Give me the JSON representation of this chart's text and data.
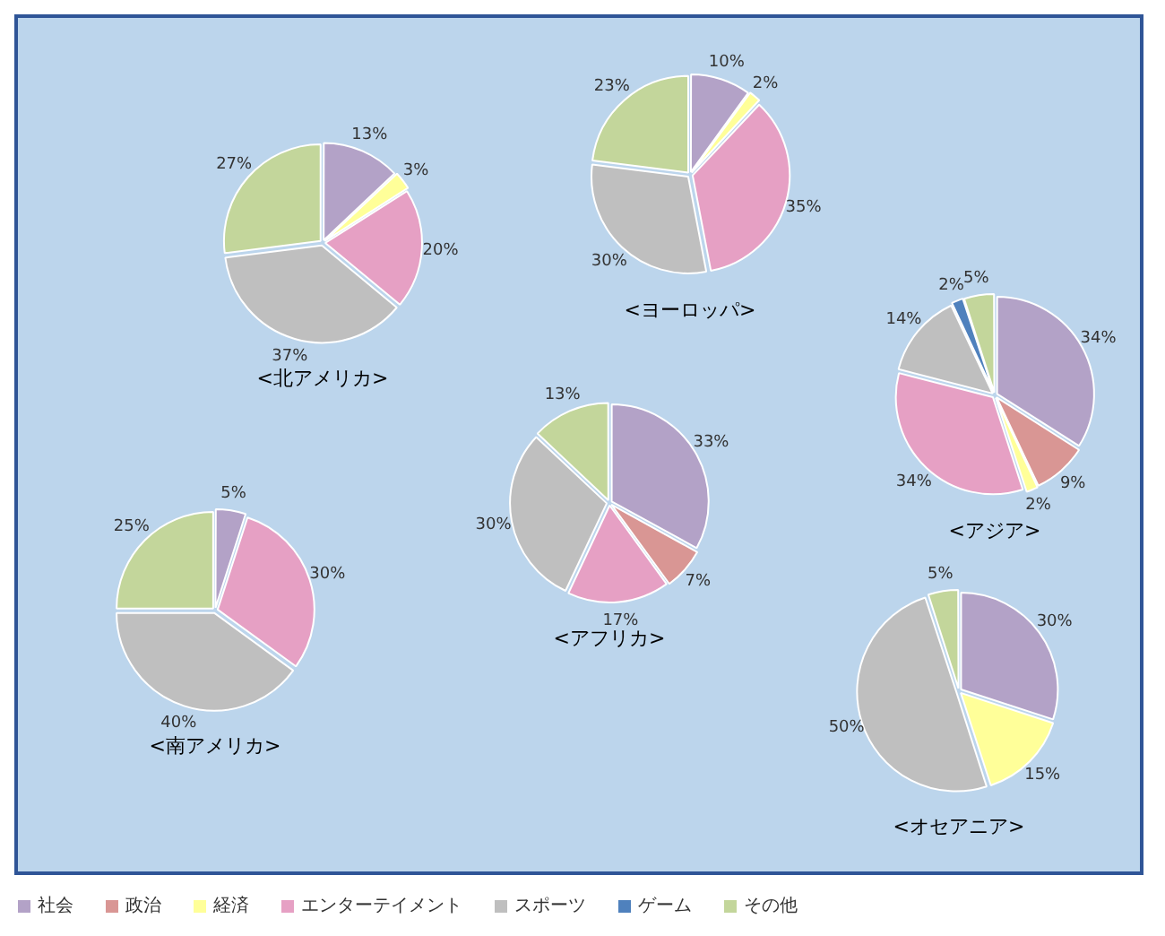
{
  "chart_data": [
    {
      "type": "pie",
      "title": "<北アメリカ>",
      "legend": "bottom",
      "categories": [
        "社会",
        "政治",
        "経済",
        "エンターテイメント",
        "スポーツ",
        "ゲーム",
        "その他"
      ],
      "values": [
        13,
        null,
        3,
        20,
        37,
        null,
        27
      ],
      "value_labels": [
        "13%",
        null,
        "3%",
        "20%",
        "37%",
        null,
        "27%"
      ],
      "colors": [
        "#b3a2c7",
        "#d99694",
        "#ffff99",
        "#e6a0c4",
        "#bfbfbf",
        "#4f81bd",
        "#c3d69b"
      ]
    },
    {
      "type": "pie",
      "title": "<ヨーロッパ>",
      "categories": [
        null,
        null,
        null,
        null,
        null,
        null,
        null
      ],
      "values": [
        10,
        null,
        2,
        35,
        30,
        null,
        23
      ],
      "value_labels": [
        "10%",
        null,
        "2%",
        "35%",
        "30%",
        null,
        "23%"
      ],
      "colors": [
        "#b3a2c7",
        "#d99694",
        "#ffff99",
        "#e6a0c4",
        "#bfbfbf",
        "#4f81bd",
        "#c3d69b"
      ]
    },
    {
      "type": "pie",
      "title": "<アジア>",
      "categories": [
        null,
        null,
        null,
        null,
        null,
        null,
        null
      ],
      "values": [
        34,
        9,
        2,
        34,
        14,
        2,
        5
      ],
      "value_labels": [
        "34%",
        "9%",
        "2%",
        "34%",
        "14%",
        "2%",
        "5%"
      ],
      "colors": [
        "#b3a2c7",
        "#d99694",
        "#ffff99",
        "#e6a0c4",
        "#bfbfbf",
        "#4f81bd",
        "#c3d69b"
      ]
    },
    {
      "type": "pie",
      "title": "<アフリカ>",
      "categories": [
        null,
        null,
        null,
        null,
        null,
        null,
        null
      ],
      "values": [
        33,
        7,
        null,
        17,
        30,
        null,
        13
      ],
      "value_labels": [
        "33%",
        "7%",
        null,
        "17%",
        "30%",
        null,
        "13%"
      ],
      "colors": [
        "#b3a2c7",
        "#d99694",
        "#ffff99",
        "#e6a0c4",
        "#bfbfbf",
        "#4f81bd",
        "#c3d69b"
      ]
    },
    {
      "type": "pie",
      "title": "<南アメリカ>",
      "categories": [
        null,
        null,
        null,
        null,
        null,
        null,
        null
      ],
      "values": [
        5,
        null,
        null,
        30,
        40,
        null,
        25
      ],
      "value_labels": [
        "5%",
        null,
        null,
        "30%",
        "40%",
        null,
        "25%"
      ],
      "colors": [
        "#b3a2c7",
        "#d99694",
        "#ffff99",
        "#e6a0c4",
        "#bfbfbf",
        "#4f81bd",
        "#c3d69b"
      ]
    },
    {
      "type": "pie",
      "title": "<オセアニア>",
      "categories": [
        null,
        null,
        null,
        null,
        null,
        null,
        null
      ],
      "values": [
        30,
        null,
        15,
        null,
        50,
        null,
        5
      ],
      "value_labels": [
        "30%",
        null,
        "15%",
        null,
        "50%",
        null,
        "5%"
      ],
      "colors": [
        "#b3a2c7",
        "#d99694",
        "#ffff99",
        "#e6a0c4",
        "#bfbfbf",
        "#4f81bd",
        "#c3d69b"
      ]
    }
  ]
}
